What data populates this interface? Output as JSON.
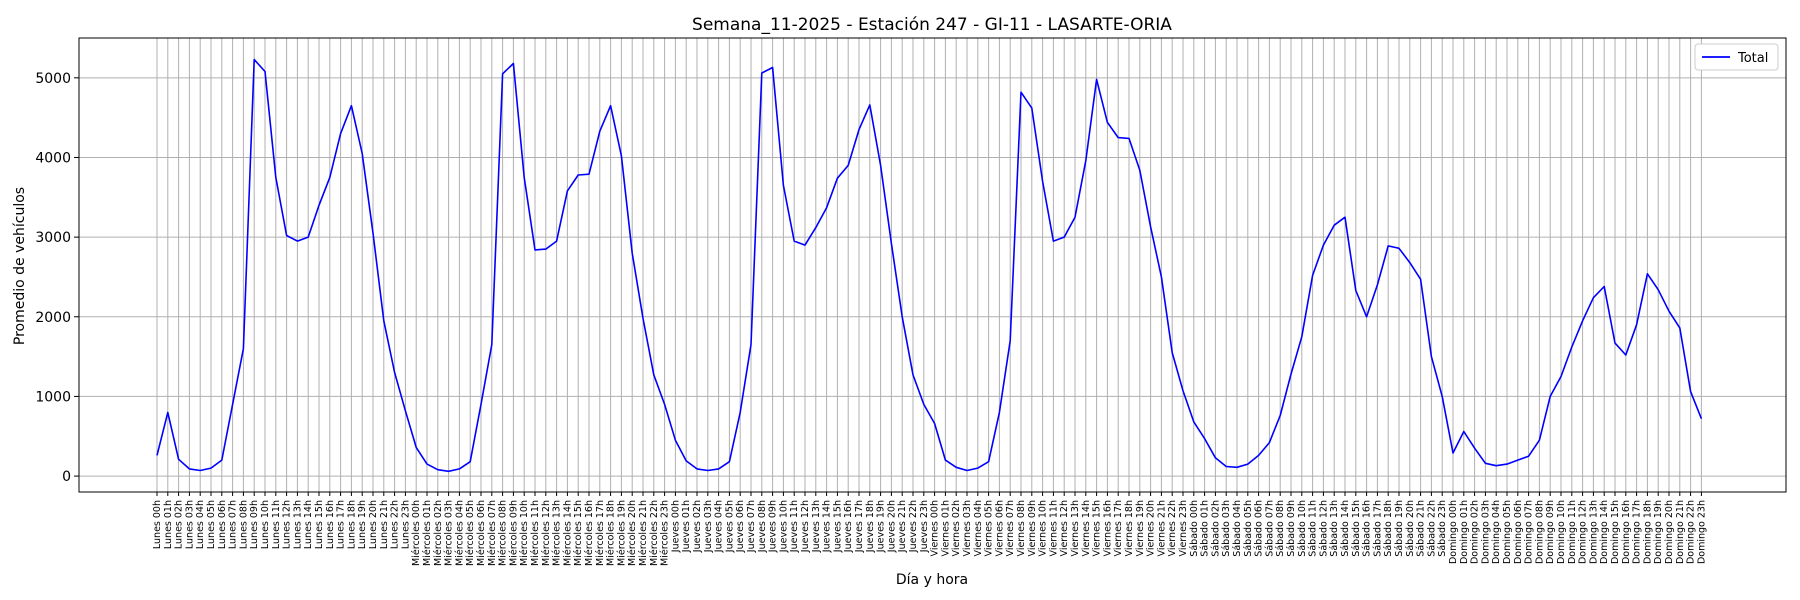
{
  "chart_data": {
    "type": "line",
    "title": "Semana_11-2025 - Estación 247 - GI-11  - LASARTE-ORIA",
    "xlabel": "Día y hora",
    "ylabel": "Promedio de vehículos",
    "ylim": [
      -200,
      5500
    ],
    "yticks": [
      0,
      1000,
      2000,
      3000,
      4000,
      5000
    ],
    "grid": true,
    "legend_position": "top-right",
    "series": [
      {
        "name": "Total",
        "color": "#0000ff",
        "values": [
          260,
          800,
          210,
          90,
          70,
          100,
          200,
          900,
          1600,
          5230,
          5080,
          3750,
          3020,
          2950,
          3000,
          3400,
          3750,
          4300,
          4650,
          4050,
          3050,
          1950,
          1300,
          820,
          360,
          150,
          80,
          60,
          90,
          180,
          900,
          1650,
          5050,
          5180,
          3750,
          2840,
          2850,
          2950,
          3580,
          3780,
          3790,
          4330,
          4650,
          4020,
          2800,
          1980,
          1270,
          900,
          450,
          190,
          90,
          70,
          90,
          180,
          800,
          1650,
          5060,
          5130,
          3650,
          2950,
          2900,
          3120,
          3370,
          3740,
          3900,
          4350,
          4660,
          3900,
          2920,
          2000,
          1270,
          900,
          660,
          200,
          110,
          70,
          100,
          180,
          800,
          1700,
          4820,
          4620,
          3700,
          2950,
          3000,
          3250,
          3960,
          4980,
          4440,
          4250,
          4240,
          3840,
          3130,
          2500,
          1550,
          1070,
          680,
          470,
          230,
          120,
          110,
          150,
          260,
          420,
          760,
          1280,
          1750,
          2520,
          2900,
          3150,
          3250,
          2330,
          2000,
          2400,
          2890,
          2860,
          2680,
          2470,
          1500,
          1000,
          290,
          560,
          350,
          160,
          130,
          150,
          200,
          250,
          450,
          1000,
          1250,
          1620,
          1950,
          2240,
          2380,
          1670,
          1520,
          1900,
          2540,
          2340,
          2070,
          1860,
          1060,
          720
        ]
      }
    ],
    "days": [
      "Lunes",
      "Miércoles",
      "Jueves",
      "Viernes",
      "Sábado",
      "Domingo"
    ],
    "hours": [
      "00h",
      "01h",
      "02h",
      "03h",
      "04h",
      "05h",
      "06h",
      "07h",
      "08h",
      "09h",
      "10h",
      "11h",
      "12h",
      "13h",
      "14h",
      "15h",
      "16h",
      "17h",
      "18h",
      "19h",
      "20h",
      "21h",
      "22h",
      "23h"
    ]
  }
}
